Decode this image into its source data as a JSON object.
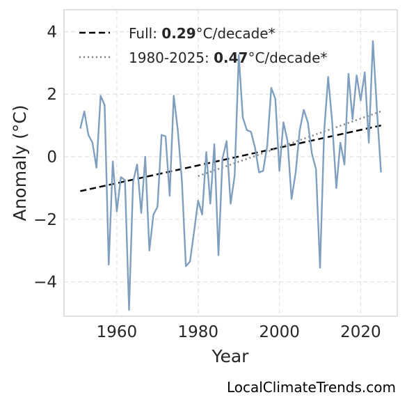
{
  "chart_data": {
    "type": "line",
    "xlabel": "Year",
    "ylabel": "Anomaly (°C)",
    "xlim": [
      1947,
      2029
    ],
    "ylim": [
      -5.1,
      4.7
    ],
    "xticks": [
      1960,
      1980,
      2000,
      2020
    ],
    "yticks": [
      -4,
      -2,
      0,
      2,
      4
    ],
    "ytick_labels": [
      "−4",
      "−2",
      "0",
      "2",
      "4"
    ],
    "grid": true,
    "legend_position": "top-left",
    "colors": {
      "series": "#7f9fbf",
      "full_trend": "#000000",
      "recent_trend": "#808080"
    },
    "series": [
      {
        "x": [
          1951,
          1952,
          1953,
          1954,
          1955,
          1956,
          1957,
          1958,
          1959,
          1960,
          1961,
          1962,
          1963,
          1964,
          1965,
          1966,
          1967,
          1968,
          1969,
          1970,
          1971,
          1972,
          1973,
          1974,
          1975,
          1976,
          1977,
          1978,
          1979,
          1980,
          1981,
          1982,
          1983,
          1984,
          1985,
          1986,
          1987,
          1988,
          1989,
          1990,
          1991,
          1992,
          1993,
          1994,
          1995,
          1996,
          1997,
          1998,
          1999,
          2000,
          2001,
          2002,
          2003,
          2004,
          2005,
          2006,
          2007,
          2008,
          2009,
          2010,
          2011,
          2012,
          2013,
          2014,
          2015,
          2016,
          2017,
          2018,
          2019,
          2020,
          2021,
          2022,
          2023,
          2024,
          2025
        ],
        "values": [
          0.9,
          1.45,
          0.7,
          0.45,
          -0.35,
          1.95,
          1.65,
          -3.45,
          -0.15,
          -1.75,
          -0.65,
          -0.75,
          -4.9,
          -0.8,
          -0.25,
          -1.8,
          0.0,
          -3.0,
          -1.85,
          -1.6,
          0.7,
          0.65,
          -1.25,
          1.95,
          0.85,
          -0.75,
          -3.5,
          -3.35,
          -2.4,
          -1.4,
          -1.85,
          0.15,
          -1.5,
          0.4,
          -3.15,
          -0.05,
          0.5,
          -1.5,
          -0.6,
          3.25,
          1.25,
          0.85,
          0.8,
          0.3,
          -0.5,
          -0.45,
          0.35,
          2.2,
          1.85,
          -0.45,
          1.1,
          0.5,
          -1.35,
          -0.5,
          0.85,
          1.5,
          1.1,
          0.1,
          -0.4,
          -3.55,
          0.8,
          2.55,
          1.1,
          -1.0,
          0.45,
          -0.25,
          2.65,
          1.2,
          2.6,
          1.8,
          2.7,
          0.45,
          3.7,
          1.5,
          -0.5
        ]
      }
    ],
    "trend_lines": [
      {
        "label": "Full: ",
        "value": "0.29",
        "unit": "°C/decade*",
        "x": [
          1951,
          2025
        ],
        "y": [
          -1.1,
          1.0
        ],
        "style": "dashed"
      },
      {
        "label": "1980-2025: ",
        "value": "0.47",
        "unit": "°C/decade*",
        "x": [
          1980,
          2025
        ],
        "y": [
          -0.62,
          1.45
        ],
        "style": "dotted"
      }
    ]
  },
  "credit": "LocalClimateTrends.com"
}
